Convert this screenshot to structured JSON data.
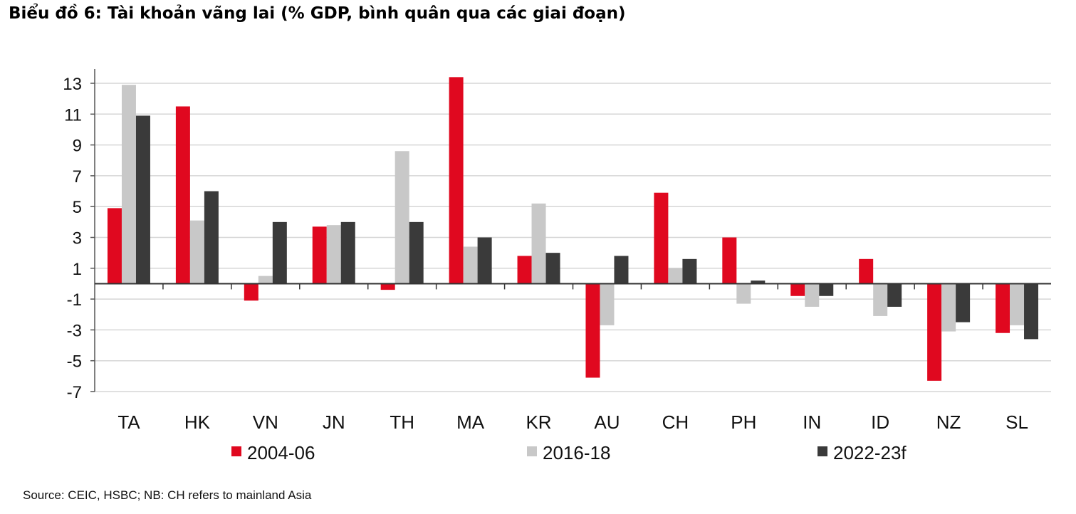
{
  "title": "Biểu đồ 6: Tài khoản vãng lai (% GDP, bình quân qua các giai đoạn)",
  "source": "Source: CEIC, HSBC; NB: CH refers to mainland Asia",
  "chart_data": {
    "type": "bar",
    "title": "Biểu đồ 6: Tài khoản vãng lai (% GDP, bình quân qua các giai đoạn)",
    "xlabel": "",
    "ylabel": "",
    "ylim": [
      -7,
      14
    ],
    "yticks": [
      13,
      11,
      9,
      7,
      5,
      3,
      1,
      -1,
      -3,
      -5,
      -7
    ],
    "grid": true,
    "legend_position": "bottom",
    "categories": [
      "TA",
      "HK",
      "VN",
      "JN",
      "TH",
      "MA",
      "KR",
      "AU",
      "CH",
      "PH",
      "IN",
      "ID",
      "NZ",
      "SL"
    ],
    "series": [
      {
        "name": "2004-06",
        "color": "#e0081f",
        "values": [
          4.9,
          11.5,
          -1.1,
          3.7,
          -0.4,
          13.4,
          1.8,
          -6.1,
          5.9,
          3.0,
          -0.8,
          1.6,
          -6.3,
          -3.2
        ]
      },
      {
        "name": "2016-18",
        "color": "#c8c8c8",
        "values": [
          12.9,
          4.1,
          0.5,
          3.8,
          8.6,
          2.4,
          5.2,
          -2.7,
          1.0,
          -1.3,
          -1.5,
          -2.1,
          -3.1,
          -2.7
        ]
      },
      {
        "name": "2022-23f",
        "color": "#3a3a3a",
        "values": [
          10.9,
          6.0,
          4.0,
          4.0,
          4.0,
          3.0,
          2.0,
          1.8,
          1.6,
          0.2,
          -0.8,
          -1.5,
          -2.5,
          -3.6
        ]
      }
    ]
  }
}
